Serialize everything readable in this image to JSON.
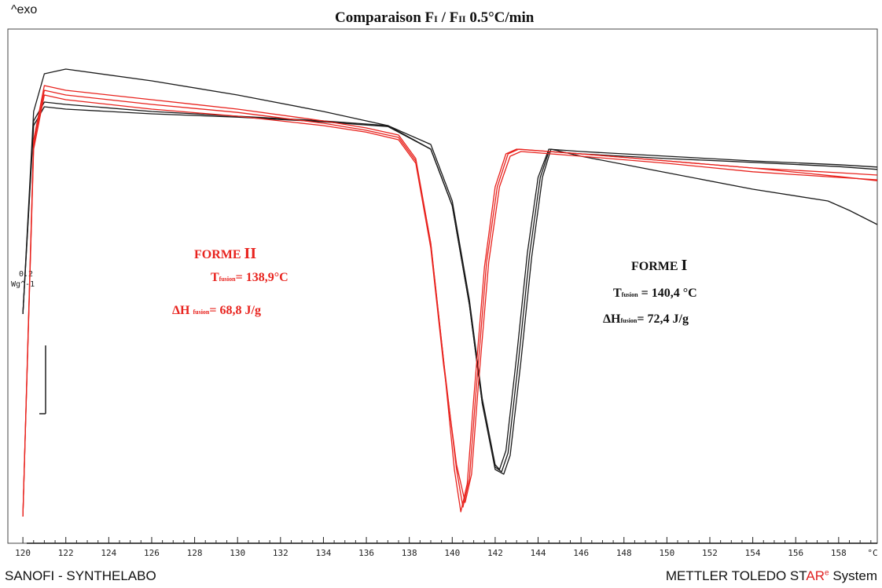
{
  "header": {
    "exo_label": "^exo",
    "title_a": "Comparaison F",
    "title_sub1": "I",
    "title_b": " / F",
    "title_sub2": "II",
    "title_c": "   0.5°C/min"
  },
  "scale": {
    "value": "0.2",
    "unit": "Wg^-1"
  },
  "footer": {
    "left": "SANOFI - SYNTHELABO",
    "right_a": "METTLER TOLEDO ST",
    "right_red": "AR",
    "right_sup": "e",
    "right_b": " System"
  },
  "annotations": {
    "forme2": {
      "name": "FORME ",
      "roman": "II",
      "t_symbol": "T",
      "t_sub": "fusion",
      "t_value": "= 138,9°C",
      "h_symbol": "ΔH",
      "h_sub": "fusion",
      "h_value": "= 68,8 J/g"
    },
    "forme1": {
      "name": "FORME  ",
      "roman": "I",
      "t_symbol": "T",
      "t_sub": "fusion",
      "t_value": " = 140,4 °C",
      "h_symbol": "ΔH",
      "h_sub": "fusion",
      "h_value": "= 72,4 J/g"
    }
  },
  "chart_data": {
    "type": "line",
    "x_unit": "°C",
    "xlim": [
      119.3,
      159.8
    ],
    "x_ticks": [
      120,
      122,
      124,
      126,
      128,
      130,
      132,
      134,
      136,
      138,
      140,
      142,
      144,
      146,
      148,
      150,
      152,
      154,
      156,
      158
    ],
    "ylim": [
      0,
      1
    ],
    "grid": false,
    "colors": {
      "forme1": "#1a1a1a",
      "forme2": "#e8231e"
    },
    "series": [
      {
        "group": "forme1",
        "x": [
          120,
          120.5,
          121,
          122,
          126,
          130,
          134,
          137,
          139,
          140,
          140.8,
          141.4,
          142,
          142.2,
          142.5,
          143,
          143.5,
          144,
          144.5,
          146,
          150,
          154,
          158,
          159.8
        ],
        "y": [
          0.45,
          0.88,
          0.96,
          0.97,
          0.945,
          0.915,
          0.88,
          0.85,
          0.81,
          0.69,
          0.48,
          0.27,
          0.13,
          0.12,
          0.16,
          0.36,
          0.58,
          0.74,
          0.8,
          0.795,
          0.785,
          0.775,
          0.767,
          0.762
        ]
      },
      {
        "group": "forme1",
        "x": [
          120,
          120.5,
          121,
          122,
          126,
          130,
          134,
          137,
          139,
          140,
          140.8,
          141.4,
          142,
          142.4,
          142.7,
          143.2,
          143.7,
          144.2,
          144.6,
          146,
          150,
          154,
          157.5,
          158.5,
          159.8
        ],
        "y": [
          0.45,
          0.86,
          0.9,
          0.895,
          0.88,
          0.87,
          0.86,
          0.85,
          0.8,
          0.68,
          0.47,
          0.26,
          0.12,
          0.11,
          0.15,
          0.35,
          0.57,
          0.74,
          0.8,
          0.785,
          0.75,
          0.715,
          0.69,
          0.67,
          0.64
        ]
      },
      {
        "group": "forme1",
        "x": [
          120,
          120.5,
          121,
          122,
          126,
          130,
          134,
          137,
          139,
          140,
          140.8,
          141.4,
          142,
          142.3,
          142.6,
          143.1,
          143.6,
          144.1,
          144.5,
          146,
          150,
          154,
          158,
          159.8
        ],
        "y": [
          0.45,
          0.85,
          0.89,
          0.885,
          0.875,
          0.868,
          0.858,
          0.848,
          0.8,
          0.68,
          0.47,
          0.26,
          0.125,
          0.115,
          0.155,
          0.355,
          0.575,
          0.74,
          0.795,
          0.79,
          0.78,
          0.772,
          0.763,
          0.757
        ]
      },
      {
        "group": "forme2",
        "x": [
          120,
          120.5,
          121,
          122,
          126,
          130,
          134,
          136,
          137.5,
          138.3,
          139,
          139.6,
          140.1,
          140.4,
          140.7,
          141,
          141.5,
          142,
          142.5,
          143,
          146,
          150,
          154,
          158,
          159.8
        ],
        "y": [
          0.02,
          0.82,
          0.935,
          0.925,
          0.905,
          0.885,
          0.86,
          0.845,
          0.83,
          0.78,
          0.6,
          0.35,
          0.12,
          0.03,
          0.09,
          0.27,
          0.55,
          0.72,
          0.79,
          0.8,
          0.79,
          0.775,
          0.76,
          0.742,
          0.733
        ]
      },
      {
        "group": "forme2",
        "x": [
          120,
          120.5,
          121,
          122,
          126,
          130,
          134,
          136,
          137.5,
          138.3,
          139,
          139.6,
          140.2,
          140.5,
          140.8,
          141.1,
          141.6,
          142.1,
          142.6,
          143.1,
          146,
          150,
          154,
          158,
          159.8
        ],
        "y": [
          0.02,
          0.81,
          0.925,
          0.915,
          0.895,
          0.878,
          0.855,
          0.84,
          0.825,
          0.775,
          0.6,
          0.35,
          0.12,
          0.04,
          0.1,
          0.28,
          0.56,
          0.72,
          0.79,
          0.8,
          0.79,
          0.775,
          0.76,
          0.75,
          0.745
        ]
      },
      {
        "group": "forme2",
        "x": [
          120,
          120.5,
          121,
          122,
          126,
          130,
          134,
          136,
          137.5,
          138.3,
          139,
          139.6,
          140.2,
          140.6,
          140.9,
          141.2,
          141.7,
          142.2,
          142.7,
          143.2,
          146,
          150,
          154,
          158,
          159.8
        ],
        "y": [
          0.02,
          0.8,
          0.915,
          0.905,
          0.885,
          0.87,
          0.85,
          0.836,
          0.82,
          0.77,
          0.59,
          0.34,
          0.13,
          0.05,
          0.11,
          0.29,
          0.56,
          0.72,
          0.785,
          0.795,
          0.785,
          0.77,
          0.752,
          0.74,
          0.735
        ]
      }
    ]
  }
}
